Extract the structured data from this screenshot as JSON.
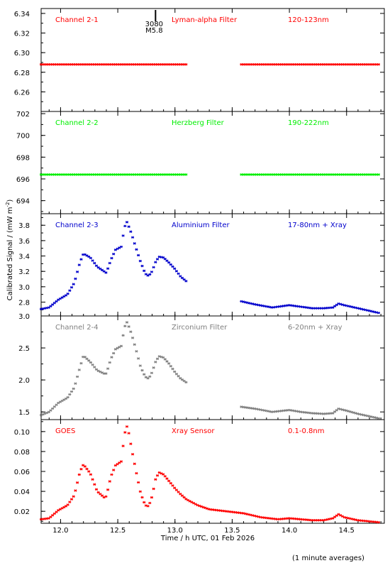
{
  "chart_data": {
    "type": "scatter",
    "xlabel": "Time / h UTC, 01 Feb 2026",
    "ylabel": "Calibrated Signal / (mW m",
    "ylabel_exp": "-2",
    "ylabel_close": ")",
    "footnote": "(1 minute averages)",
    "x_range": [
      11.83,
      14.83
    ],
    "x_ticks": [
      12.0,
      12.5,
      13.0,
      13.5,
      14.0,
      14.5
    ],
    "x_tick_labels": [
      "12.0",
      "12.5",
      "13.0",
      "13.5",
      "14.0",
      "14.5"
    ],
    "data_gap": [
      13.1,
      13.58
    ],
    "flare_marker": {
      "x": 12.83,
      "region": "3080",
      "class": "M5.8"
    },
    "panels": [
      {
        "channel": "Channel 2-1",
        "filter": "Lyman-alpha Filter",
        "band": "120-123nm",
        "color": "#ff0000",
        "ylim": [
          6.24,
          6.345
        ],
        "y_ticks": [
          6.26,
          6.28,
          6.3,
          6.32,
          6.34
        ],
        "y_tick_labels": [
          "6.26",
          "6.28",
          "6.30",
          "6.32",
          "6.34"
        ],
        "points": [
          [
            11.83,
            6.288
          ],
          [
            13.1,
            6.288
          ],
          [
            13.58,
            6.288
          ],
          [
            14.78,
            6.288
          ]
        ]
      },
      {
        "channel": "Channel 2-2",
        "filter": "Herzberg Filter",
        "band": "190-222nm",
        "color": "#00ee00",
        "ylim": [
          692.8,
          702.2
        ],
        "y_ticks": [
          694,
          696,
          698,
          700,
          702
        ],
        "y_tick_labels": [
          "694",
          "696",
          "698",
          "700",
          "702"
        ],
        "points": [
          [
            11.83,
            696.4
          ],
          [
            13.1,
            696.4
          ],
          [
            13.58,
            696.4
          ],
          [
            14.78,
            696.4
          ]
        ]
      },
      {
        "channel": "Channel 2-3",
        "filter": "Aluminium Filter",
        "band": "17-80nm + Xray",
        "color": "#0000cc",
        "ylim": [
          2.62,
          3.95
        ],
        "y_ticks": [
          2.8,
          3.0,
          3.2,
          3.4,
          3.6,
          3.8
        ],
        "y_tick_labels": [
          "2.8",
          "3.0",
          "3.2",
          "3.4",
          "3.6",
          "3.8"
        ],
        "points": [
          [
            11.83,
            2.71
          ],
          [
            11.9,
            2.73
          ],
          [
            11.98,
            2.83
          ],
          [
            12.06,
            2.9
          ],
          [
            12.12,
            3.05
          ],
          [
            12.17,
            3.32
          ],
          [
            12.2,
            3.43
          ],
          [
            12.26,
            3.38
          ],
          [
            12.32,
            3.26
          ],
          [
            12.38,
            3.2
          ],
          [
            12.4,
            3.18
          ],
          [
            12.44,
            3.35
          ],
          [
            12.48,
            3.48
          ],
          [
            12.53,
            3.52
          ],
          [
            12.56,
            3.78
          ],
          [
            12.58,
            3.84
          ],
          [
            12.6,
            3.77
          ],
          [
            12.62,
            3.69
          ],
          [
            12.66,
            3.5
          ],
          [
            12.7,
            3.32
          ],
          [
            12.74,
            3.17
          ],
          [
            12.77,
            3.14
          ],
          [
            12.8,
            3.2
          ],
          [
            12.83,
            3.32
          ],
          [
            12.86,
            3.39
          ],
          [
            12.9,
            3.38
          ],
          [
            12.95,
            3.31
          ],
          [
            13.0,
            3.23
          ],
          [
            13.05,
            3.13
          ],
          [
            13.1,
            3.07
          ],
          [
            13.58,
            2.81
          ],
          [
            13.7,
            2.77
          ],
          [
            13.85,
            2.73
          ],
          [
            14.0,
            2.76
          ],
          [
            14.1,
            2.74
          ],
          [
            14.2,
            2.72
          ],
          [
            14.3,
            2.72
          ],
          [
            14.38,
            2.73
          ],
          [
            14.43,
            2.78
          ],
          [
            14.48,
            2.76
          ],
          [
            14.6,
            2.72
          ],
          [
            14.78,
            2.66
          ]
        ]
      },
      {
        "channel": "Channel 2-4",
        "filter": "Zirconium Filter",
        "band": "6-20nm + Xray",
        "color": "#808080",
        "ylim": [
          1.38,
          3.0
        ],
        "y_ticks": [
          1.5,
          2.0,
          2.5,
          3.0
        ],
        "y_tick_labels": [
          "1.5",
          "2.0",
          "2.5",
          "3.0"
        ],
        "points": [
          [
            11.83,
            1.45
          ],
          [
            11.9,
            1.5
          ],
          [
            11.98,
            1.64
          ],
          [
            12.06,
            1.72
          ],
          [
            12.12,
            1.88
          ],
          [
            12.17,
            2.2
          ],
          [
            12.2,
            2.38
          ],
          [
            12.26,
            2.28
          ],
          [
            12.32,
            2.15
          ],
          [
            12.38,
            2.1
          ],
          [
            12.4,
            2.1
          ],
          [
            12.44,
            2.33
          ],
          [
            12.48,
            2.48
          ],
          [
            12.53,
            2.53
          ],
          [
            12.56,
            2.83
          ],
          [
            12.58,
            2.9
          ],
          [
            12.6,
            2.82
          ],
          [
            12.62,
            2.72
          ],
          [
            12.66,
            2.47
          ],
          [
            12.7,
            2.2
          ],
          [
            12.74,
            2.05
          ],
          [
            12.77,
            2.02
          ],
          [
            12.8,
            2.12
          ],
          [
            12.83,
            2.28
          ],
          [
            12.86,
            2.37
          ],
          [
            12.9,
            2.35
          ],
          [
            12.95,
            2.25
          ],
          [
            13.0,
            2.12
          ],
          [
            13.05,
            2.02
          ],
          [
            13.1,
            1.96
          ],
          [
            13.58,
            1.58
          ],
          [
            13.7,
            1.55
          ],
          [
            13.85,
            1.5
          ],
          [
            14.0,
            1.53
          ],
          [
            14.1,
            1.5
          ],
          [
            14.2,
            1.48
          ],
          [
            14.3,
            1.47
          ],
          [
            14.38,
            1.48
          ],
          [
            14.43,
            1.55
          ],
          [
            14.5,
            1.52
          ],
          [
            14.6,
            1.47
          ],
          [
            14.78,
            1.4
          ]
        ]
      },
      {
        "channel": "GOES",
        "filter": "Xray Sensor",
        "band": "0.1-0.8nm",
        "color": "#ff0000",
        "ylim": [
          0.008,
          0.112
        ],
        "y_ticks": [
          0.02,
          0.04,
          0.06,
          0.08,
          0.1
        ],
        "y_tick_labels": [
          "0.02",
          "0.04",
          "0.06",
          "0.08",
          "0.10"
        ],
        "points": [
          [
            11.83,
            0.012
          ],
          [
            11.9,
            0.013
          ],
          [
            11.98,
            0.021
          ],
          [
            12.06,
            0.026
          ],
          [
            12.12,
            0.036
          ],
          [
            12.17,
            0.06
          ],
          [
            12.2,
            0.067
          ],
          [
            12.26,
            0.058
          ],
          [
            12.32,
            0.04
          ],
          [
            12.38,
            0.034
          ],
          [
            12.4,
            0.035
          ],
          [
            12.44,
            0.055
          ],
          [
            12.48,
            0.066
          ],
          [
            12.53,
            0.07
          ],
          [
            12.56,
            0.098
          ],
          [
            12.58,
            0.105
          ],
          [
            12.6,
            0.097
          ],
          [
            12.62,
            0.083
          ],
          [
            12.66,
            0.06
          ],
          [
            12.7,
            0.038
          ],
          [
            12.74,
            0.026
          ],
          [
            12.77,
            0.025
          ],
          [
            12.8,
            0.035
          ],
          [
            12.83,
            0.052
          ],
          [
            12.86,
            0.059
          ],
          [
            12.9,
            0.057
          ],
          [
            12.95,
            0.05
          ],
          [
            13.0,
            0.043
          ],
          [
            13.05,
            0.037
          ],
          [
            13.1,
            0.032
          ],
          [
            13.2,
            0.026
          ],
          [
            13.3,
            0.022
          ],
          [
            13.45,
            0.02
          ],
          [
            13.6,
            0.018
          ],
          [
            13.75,
            0.014
          ],
          [
            13.9,
            0.012
          ],
          [
            14.0,
            0.013
          ],
          [
            14.1,
            0.012
          ],
          [
            14.2,
            0.011
          ],
          [
            14.3,
            0.011
          ],
          [
            14.38,
            0.013
          ],
          [
            14.43,
            0.017
          ],
          [
            14.48,
            0.014
          ],
          [
            14.6,
            0.011
          ],
          [
            14.78,
            0.009
          ]
        ]
      }
    ]
  }
}
